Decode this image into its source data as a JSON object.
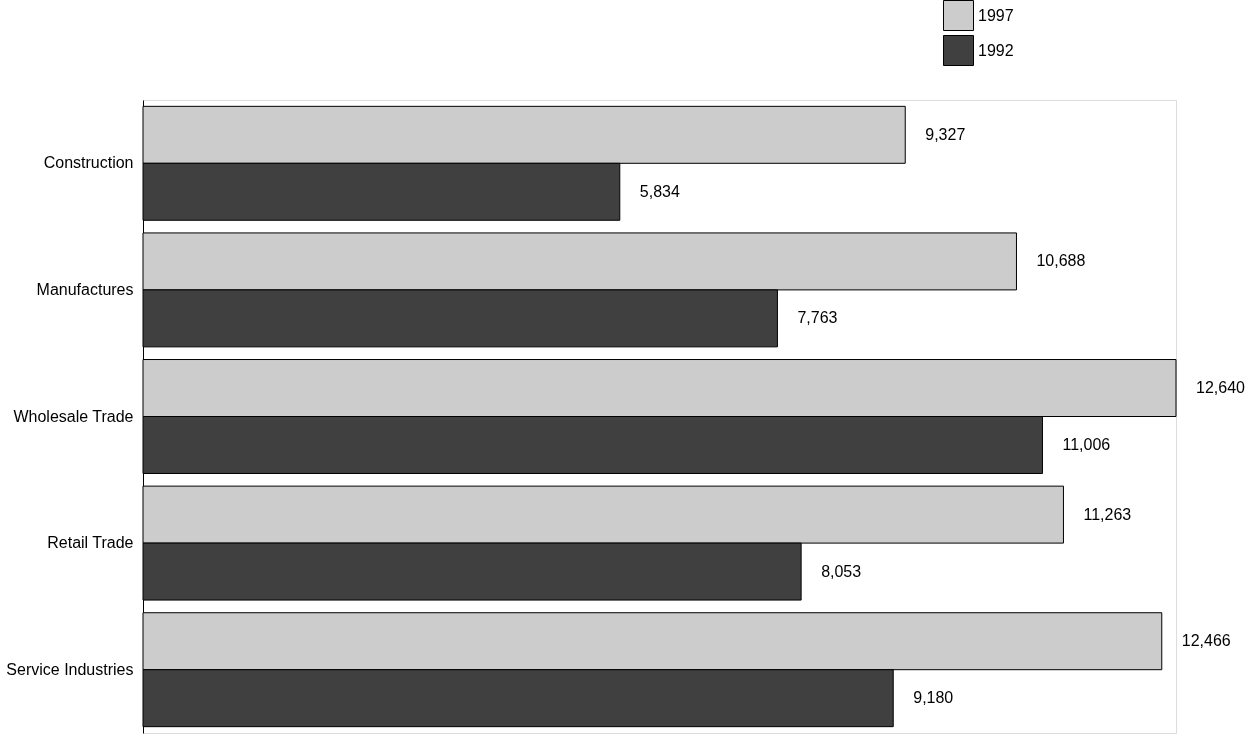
{
  "chart_data": {
    "type": "bar",
    "orientation": "horizontal",
    "categories": [
      "Construction",
      "Manufactures",
      "Wholesale Trade",
      "Retail Trade",
      "Service Industries"
    ],
    "series": [
      {
        "name": "1997",
        "color": "#cccccc",
        "values": [
          9327,
          10688,
          12640,
          11263,
          12466
        ],
        "value_labels": [
          "9,327",
          "10,688",
          "12,640",
          "11,263",
          "12,466"
        ]
      },
      {
        "name": "1992",
        "color": "#404040",
        "values": [
          5834,
          7763,
          11006,
          8053,
          9180
        ],
        "value_labels": [
          "5,834",
          "7,763",
          "11,006",
          "8,053",
          "9,180"
        ]
      }
    ],
    "legend": "top right",
    "grid": false
  }
}
